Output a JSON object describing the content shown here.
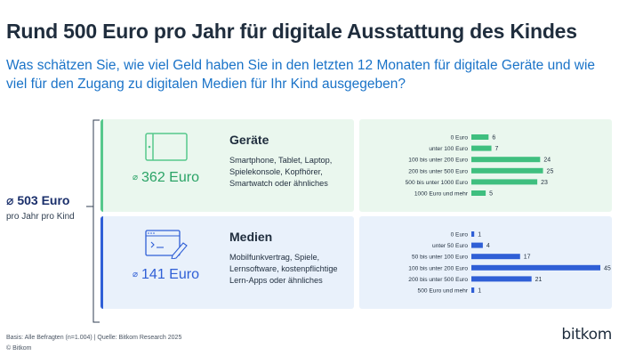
{
  "title": "Rund 500 Euro pro Jahr für digitale Ausstattung des Kindes",
  "subtitle": "Was schätzen Sie, wie viel Geld haben Sie in den letzten 12 Monaten für digitale Geräte und wie viel für den Zugang zu digitalen Medien für Ihr Kind ausgegeben?",
  "total": {
    "symbol": "⌀",
    "value": "503",
    "unit": "Euro",
    "label": "pro Jahr pro Kind"
  },
  "geraete": {
    "name": "Geräte",
    "average": "362 Euro",
    "description": "Smartphone, Tablet, Laptop, Spielekonsole, Kopfhörer, Smartwatch oder ähnliches",
    "icon": "tablet-icon",
    "color": "#2aa366"
  },
  "medien": {
    "name": "Medien",
    "average": "141 Euro",
    "description": "Mobilfunkvertrag, Spiele, Lernsoftware, kostenpflichtige Lern-Apps oder ähnliches",
    "icon": "app-pen-icon",
    "color": "#2f5fd6"
  },
  "avg_symbol": "⌀",
  "chart_data": [
    {
      "type": "bar",
      "orientation": "horizontal",
      "categories": [
        "0 Euro",
        "unter 100 Euro",
        "100 bis unter 200 Euro",
        "200 bis unter 500 Euro",
        "500 bis unter 1000 Euro",
        "1000 Euro und mehr"
      ],
      "values": [
        6,
        7,
        24,
        25,
        23,
        5
      ],
      "data_labels": [
        "6",
        "7",
        "24",
        "25",
        "23",
        "5"
      ],
      "max": 45,
      "color": "#3fbf7f"
    },
    {
      "type": "bar",
      "orientation": "horizontal",
      "categories": [
        "0 Euro",
        "unter 50 Euro",
        "50 bis unter 100 Euro",
        "100 bis unter 200 Euro",
        "200 bis unter 500 Euro",
        "500 Euro und mehr"
      ],
      "values": [
        1,
        4,
        17,
        45,
        21,
        1
      ],
      "data_labels": [
        "1",
        "4",
        "17",
        "45",
        "21",
        "1"
      ],
      "max": 45,
      "color": "#2f5fd6"
    }
  ],
  "footer": {
    "note": "Basis: Alle Befragten (n=1.004) | Quelle: Bitkom Research 2025",
    "copyright": "© Bitkom"
  },
  "logo": "bitkom"
}
